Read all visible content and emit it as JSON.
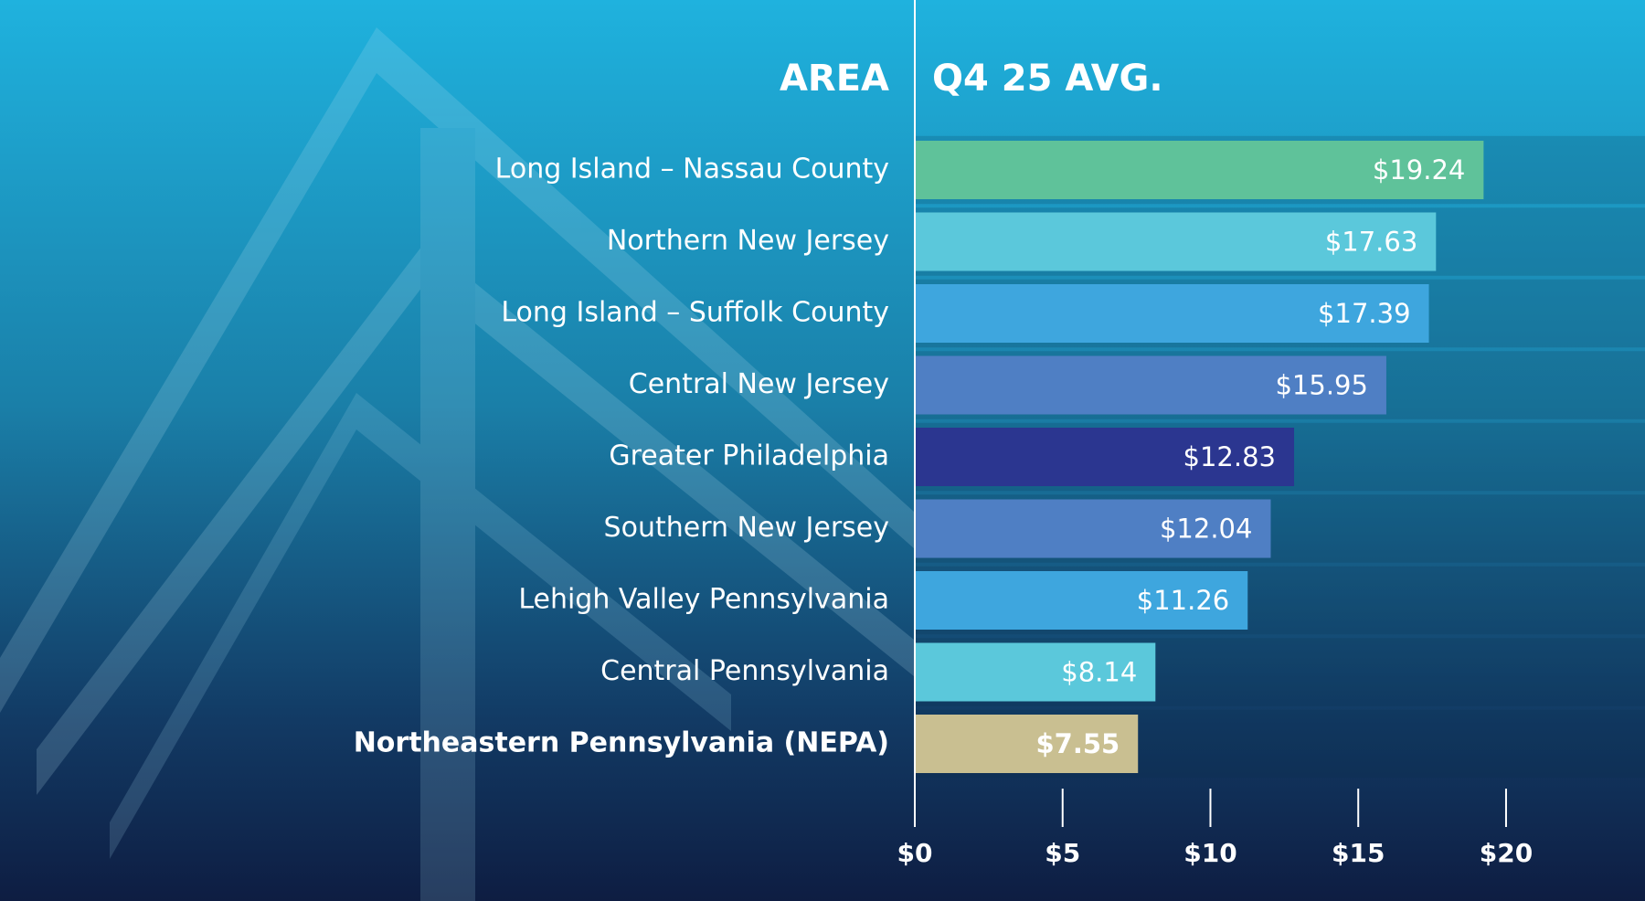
{
  "chart_data": {
    "type": "bar",
    "orientation": "horizontal",
    "category_header": "AREA",
    "value_header": "Q4 25 AVG.",
    "categories": [
      "Long Island – Nassau County",
      "Northern New Jersey",
      "Long Island – Suffolk County",
      "Central New Jersey",
      "Greater Philadelphia",
      "Southern New Jersey",
      "Lehigh Valley Pennsylvania",
      "Central Pennsylvania",
      "Northeastern Pennsylvania (NEPA)"
    ],
    "values": [
      19.24,
      17.63,
      17.39,
      15.95,
      12.83,
      12.04,
      11.26,
      8.14,
      7.55
    ],
    "value_labels": [
      "$19.24",
      "$17.63",
      "$17.39",
      "$15.95",
      "$12.83",
      "$12.04",
      "$11.26",
      "$8.14",
      "$7.55"
    ],
    "colors": [
      "#5fc29a",
      "#5bc8db",
      "#3ea6de",
      "#4f7fc4",
      "#2b3690",
      "#4f7fc4",
      "#3ea6de",
      "#5bc8db",
      "#c9bf91"
    ],
    "xlim": [
      0,
      24.7
    ],
    "xticks": [
      {
        "value": 0,
        "label": "$0"
      },
      {
        "value": 5,
        "label": "$5"
      },
      {
        "value": 10,
        "label": "$10"
      },
      {
        "value": 15,
        "label": "$15"
      },
      {
        "value": 20,
        "label": "$20"
      }
    ]
  }
}
